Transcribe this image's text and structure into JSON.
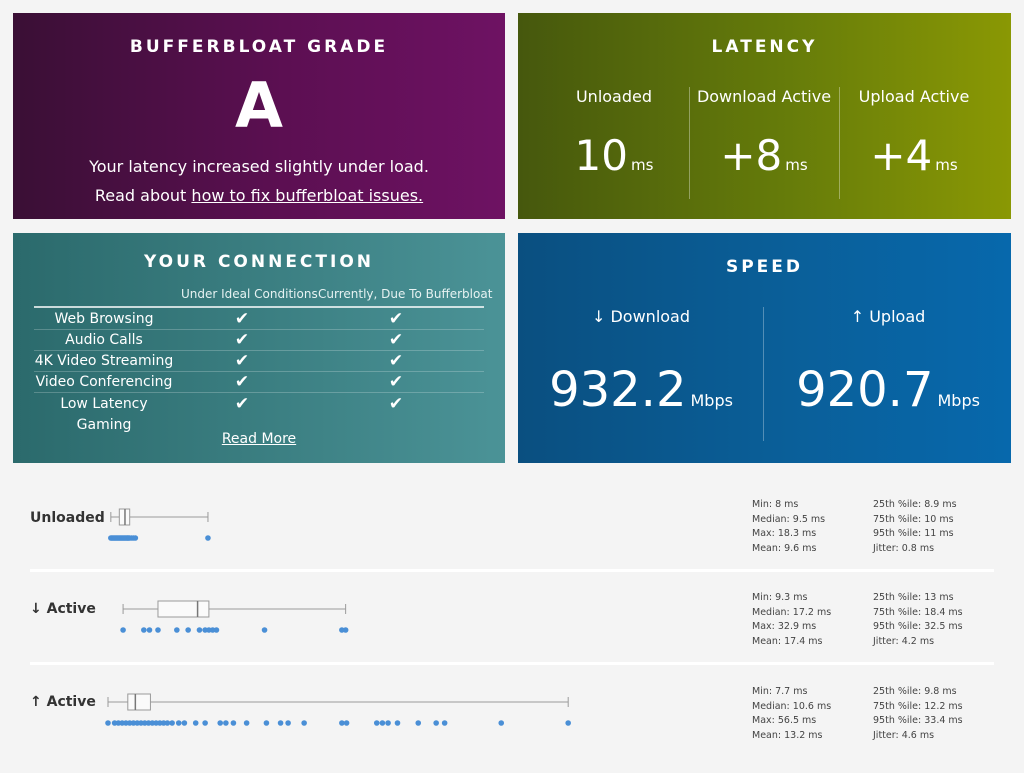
{
  "grade": {
    "title": "BUFFERBLOAT GRADE",
    "letter": "A",
    "line1": "Your latency increased slightly under load.",
    "line2_prefix": "Read about ",
    "line2_link": "how to fix bufferbloat issues."
  },
  "latency": {
    "title": "LATENCY",
    "cols": [
      {
        "label": "Unloaded",
        "value": "10",
        "unit": "ms"
      },
      {
        "label": "Download Active",
        "value": "+8",
        "unit": "ms"
      },
      {
        "label": "Upload Active",
        "value": "+4",
        "unit": "ms"
      }
    ]
  },
  "connection": {
    "title": "YOUR CONNECTION",
    "head_ideal": "Under Ideal Conditions",
    "head_current": "Currently, Due To Bufferbloat",
    "check": "✔",
    "rows": [
      {
        "name": "Web Browsing"
      },
      {
        "name": "Audio Calls"
      },
      {
        "name": "4K Video Streaming"
      },
      {
        "name": "Video Conferencing"
      },
      {
        "name": "Low Latency Gaming"
      }
    ],
    "read_more": "Read More"
  },
  "speed": {
    "title": "SPEED",
    "download": {
      "label": "↓ Download",
      "value": "932.2",
      "unit": "Mbps"
    },
    "upload": {
      "label": "↑ Upload",
      "value": "920.7",
      "unit": "Mbps"
    }
  },
  "distributions": [
    {
      "label": "Unloaded",
      "min": 8,
      "q1": 8.9,
      "median": 9.5,
      "q3": 10,
      "max": 18.3,
      "points": [
        8,
        8.1,
        8.2,
        8.3,
        8.4,
        8.5,
        8.6,
        8.7,
        8.8,
        8.9,
        9,
        9.1,
        9.2,
        9.3,
        9.4,
        9.5,
        9.6,
        9.7,
        9.8,
        9.9,
        10,
        10.2,
        10.4,
        10.6,
        18.3
      ],
      "stats": {
        "min": "Min: 8 ms",
        "median": "Median: 9.5 ms",
        "max": "Max: 18.3 ms",
        "mean": "Mean: 9.6 ms",
        "p25": "25th %ile: 8.9 ms",
        "p75": "75th %ile: 10 ms",
        "p95": "95th %ile: 11 ms",
        "jitter": "Jitter: 0.8 ms"
      }
    },
    {
      "label": "↓ Active",
      "min": 9.3,
      "q1": 13,
      "median": 17.2,
      "q3": 18.4,
      "max": 32.9,
      "points": [
        9.3,
        11.5,
        12.1,
        13,
        15,
        16.2,
        17.4,
        18,
        18.4,
        18.8,
        19.2,
        24.3,
        32.5,
        32.9
      ],
      "stats": {
        "min": "Min: 9.3 ms",
        "median": "Median: 17.2 ms",
        "max": "Max: 32.9 ms",
        "mean": "Mean: 17.4 ms",
        "p25": "25th %ile: 13 ms",
        "p75": "75th %ile: 18.4 ms",
        "p95": "95th %ile: 32.5 ms",
        "jitter": "Jitter: 4.2 ms"
      }
    },
    {
      "label": "↑ Active",
      "min": 7.7,
      "q1": 9.8,
      "median": 10.6,
      "q3": 12.2,
      "max": 56.5,
      "points": [
        7.7,
        8.4,
        8.8,
        9.2,
        9.6,
        10,
        10.4,
        10.8,
        11.2,
        11.6,
        12,
        12.4,
        12.8,
        13.2,
        13.6,
        14,
        14.5,
        15.2,
        15.8,
        17,
        18,
        19.6,
        20.2,
        21,
        22.4,
        24.5,
        26,
        26.8,
        28.5,
        32.5,
        33,
        36.2,
        36.8,
        37.4,
        38.4,
        40.6,
        42.5,
        43.4,
        49.4,
        56.5
      ],
      "stats": {
        "min": "Min: 7.7 ms",
        "median": "Median: 10.6 ms",
        "max": "Max: 56.5 ms",
        "mean": "Mean: 13.2 ms",
        "p25": "25th %ile: 9.8 ms",
        "p75": "75th %ile: 12.2 ms",
        "p95": "95th %ile: 33.4 ms",
        "jitter": "Jitter: 4.6 ms"
      }
    }
  ],
  "colors": {
    "dot": "#4a8fd6",
    "box": "#9a9a9a"
  }
}
